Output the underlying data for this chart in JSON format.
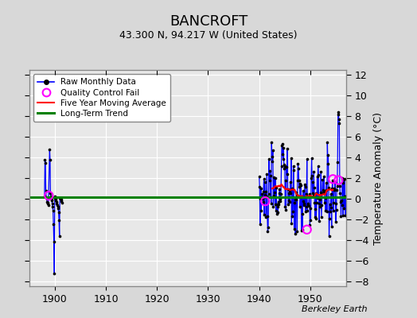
{
  "title": "BANCROFT",
  "subtitle": "43.300 N, 94.217 W (United States)",
  "ylabel": "Temperature Anomaly (°C)",
  "credit": "Berkeley Earth",
  "xlim": [
    1895,
    1957
  ],
  "ylim": [
    -8.5,
    12.5
  ],
  "yticks": [
    -8,
    -6,
    -4,
    -2,
    0,
    2,
    4,
    6,
    8,
    10,
    12
  ],
  "xticks": [
    1900,
    1910,
    1920,
    1930,
    1940,
    1950
  ],
  "bg_color": "#d8d8d8",
  "plot_bg_color": "#e8e8e8",
  "long_term_trend": 0.12,
  "period1": [
    [
      1898.0,
      0.2
    ],
    [
      1898.083,
      3.8
    ],
    [
      1898.167,
      3.5
    ],
    [
      1898.25,
      0.8
    ],
    [
      1898.333,
      0.15
    ],
    [
      1898.417,
      0.0
    ],
    [
      1898.5,
      -0.3
    ],
    [
      1898.583,
      -0.4
    ],
    [
      1898.667,
      -0.5
    ],
    [
      1898.75,
      -0.6
    ],
    [
      1899.0,
      4.8
    ],
    [
      1899.083,
      3.8
    ],
    [
      1899.167,
      0.5
    ],
    [
      1899.25,
      0.2
    ],
    [
      1899.333,
      -0.1
    ],
    [
      1899.417,
      -0.2
    ],
    [
      1899.5,
      -0.5
    ],
    [
      1899.583,
      -0.8
    ],
    [
      1899.667,
      -1.2
    ],
    [
      1899.75,
      -2.5
    ],
    [
      1899.833,
      -4.2
    ],
    [
      1899.917,
      -7.3
    ],
    [
      1900.0,
      0.25
    ],
    [
      1900.083,
      0.1
    ],
    [
      1900.167,
      0.0
    ],
    [
      1900.25,
      -0.15
    ],
    [
      1900.333,
      -0.3
    ],
    [
      1900.417,
      -0.45
    ],
    [
      1900.5,
      -0.6
    ],
    [
      1900.583,
      -0.75
    ],
    [
      1900.667,
      -0.9
    ],
    [
      1900.75,
      -1.3
    ],
    [
      1900.833,
      -2.1
    ],
    [
      1900.917,
      -3.6
    ],
    [
      1901.0,
      0.1
    ],
    [
      1901.083,
      0.05
    ],
    [
      1901.167,
      0.0
    ],
    [
      1901.25,
      -0.1
    ],
    [
      1901.333,
      -0.25
    ],
    [
      1901.417,
      -0.4
    ]
  ],
  "qc_fails_p1": [
    [
      1898.833,
      0.3
    ]
  ],
  "qc_fails_p2": [
    [
      1941.167,
      -0.25
    ],
    [
      1949.333,
      -3.0
    ],
    [
      1954.417,
      1.9
    ],
    [
      1955.5,
      1.8
    ]
  ]
}
